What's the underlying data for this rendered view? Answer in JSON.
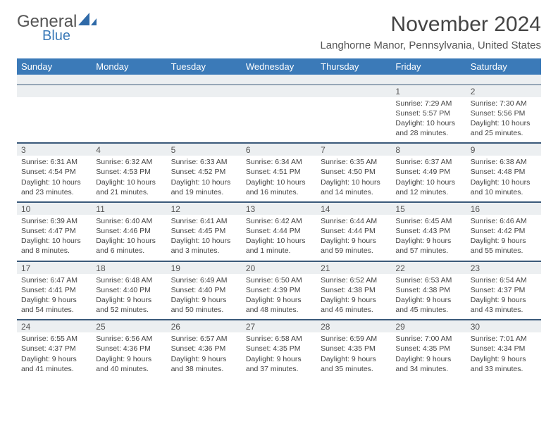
{
  "brand": {
    "top": "General",
    "bottom": "Blue"
  },
  "title": "November 2024",
  "location": "Langhorne Manor, Pennsylvania, United States",
  "colors": {
    "header_bg": "#3b7ab8",
    "header_text": "#ffffff",
    "stripe_bg": "#eceff1",
    "divider": "#3b5a7a",
    "text": "#444444",
    "location_text": "#555555"
  },
  "day_names": [
    "Sunday",
    "Monday",
    "Tuesday",
    "Wednesday",
    "Thursday",
    "Friday",
    "Saturday"
  ],
  "weeks": [
    [
      {
        "n": "",
        "sunrise": "",
        "sunset": "",
        "daylight1": "",
        "daylight2": ""
      },
      {
        "n": "",
        "sunrise": "",
        "sunset": "",
        "daylight1": "",
        "daylight2": ""
      },
      {
        "n": "",
        "sunrise": "",
        "sunset": "",
        "daylight1": "",
        "daylight2": ""
      },
      {
        "n": "",
        "sunrise": "",
        "sunset": "",
        "daylight1": "",
        "daylight2": ""
      },
      {
        "n": "",
        "sunrise": "",
        "sunset": "",
        "daylight1": "",
        "daylight2": ""
      },
      {
        "n": "1",
        "sunrise": "Sunrise: 7:29 AM",
        "sunset": "Sunset: 5:57 PM",
        "daylight1": "Daylight: 10 hours",
        "daylight2": "and 28 minutes."
      },
      {
        "n": "2",
        "sunrise": "Sunrise: 7:30 AM",
        "sunset": "Sunset: 5:56 PM",
        "daylight1": "Daylight: 10 hours",
        "daylight2": "and 25 minutes."
      }
    ],
    [
      {
        "n": "3",
        "sunrise": "Sunrise: 6:31 AM",
        "sunset": "Sunset: 4:54 PM",
        "daylight1": "Daylight: 10 hours",
        "daylight2": "and 23 minutes."
      },
      {
        "n": "4",
        "sunrise": "Sunrise: 6:32 AM",
        "sunset": "Sunset: 4:53 PM",
        "daylight1": "Daylight: 10 hours",
        "daylight2": "and 21 minutes."
      },
      {
        "n": "5",
        "sunrise": "Sunrise: 6:33 AM",
        "sunset": "Sunset: 4:52 PM",
        "daylight1": "Daylight: 10 hours",
        "daylight2": "and 19 minutes."
      },
      {
        "n": "6",
        "sunrise": "Sunrise: 6:34 AM",
        "sunset": "Sunset: 4:51 PM",
        "daylight1": "Daylight: 10 hours",
        "daylight2": "and 16 minutes."
      },
      {
        "n": "7",
        "sunrise": "Sunrise: 6:35 AM",
        "sunset": "Sunset: 4:50 PM",
        "daylight1": "Daylight: 10 hours",
        "daylight2": "and 14 minutes."
      },
      {
        "n": "8",
        "sunrise": "Sunrise: 6:37 AM",
        "sunset": "Sunset: 4:49 PM",
        "daylight1": "Daylight: 10 hours",
        "daylight2": "and 12 minutes."
      },
      {
        "n": "9",
        "sunrise": "Sunrise: 6:38 AM",
        "sunset": "Sunset: 4:48 PM",
        "daylight1": "Daylight: 10 hours",
        "daylight2": "and 10 minutes."
      }
    ],
    [
      {
        "n": "10",
        "sunrise": "Sunrise: 6:39 AM",
        "sunset": "Sunset: 4:47 PM",
        "daylight1": "Daylight: 10 hours",
        "daylight2": "and 8 minutes."
      },
      {
        "n": "11",
        "sunrise": "Sunrise: 6:40 AM",
        "sunset": "Sunset: 4:46 PM",
        "daylight1": "Daylight: 10 hours",
        "daylight2": "and 6 minutes."
      },
      {
        "n": "12",
        "sunrise": "Sunrise: 6:41 AM",
        "sunset": "Sunset: 4:45 PM",
        "daylight1": "Daylight: 10 hours",
        "daylight2": "and 3 minutes."
      },
      {
        "n": "13",
        "sunrise": "Sunrise: 6:42 AM",
        "sunset": "Sunset: 4:44 PM",
        "daylight1": "Daylight: 10 hours",
        "daylight2": "and 1 minute."
      },
      {
        "n": "14",
        "sunrise": "Sunrise: 6:44 AM",
        "sunset": "Sunset: 4:44 PM",
        "daylight1": "Daylight: 9 hours",
        "daylight2": "and 59 minutes."
      },
      {
        "n": "15",
        "sunrise": "Sunrise: 6:45 AM",
        "sunset": "Sunset: 4:43 PM",
        "daylight1": "Daylight: 9 hours",
        "daylight2": "and 57 minutes."
      },
      {
        "n": "16",
        "sunrise": "Sunrise: 6:46 AM",
        "sunset": "Sunset: 4:42 PM",
        "daylight1": "Daylight: 9 hours",
        "daylight2": "and 55 minutes."
      }
    ],
    [
      {
        "n": "17",
        "sunrise": "Sunrise: 6:47 AM",
        "sunset": "Sunset: 4:41 PM",
        "daylight1": "Daylight: 9 hours",
        "daylight2": "and 54 minutes."
      },
      {
        "n": "18",
        "sunrise": "Sunrise: 6:48 AM",
        "sunset": "Sunset: 4:40 PM",
        "daylight1": "Daylight: 9 hours",
        "daylight2": "and 52 minutes."
      },
      {
        "n": "19",
        "sunrise": "Sunrise: 6:49 AM",
        "sunset": "Sunset: 4:40 PM",
        "daylight1": "Daylight: 9 hours",
        "daylight2": "and 50 minutes."
      },
      {
        "n": "20",
        "sunrise": "Sunrise: 6:50 AM",
        "sunset": "Sunset: 4:39 PM",
        "daylight1": "Daylight: 9 hours",
        "daylight2": "and 48 minutes."
      },
      {
        "n": "21",
        "sunrise": "Sunrise: 6:52 AM",
        "sunset": "Sunset: 4:38 PM",
        "daylight1": "Daylight: 9 hours",
        "daylight2": "and 46 minutes."
      },
      {
        "n": "22",
        "sunrise": "Sunrise: 6:53 AM",
        "sunset": "Sunset: 4:38 PM",
        "daylight1": "Daylight: 9 hours",
        "daylight2": "and 45 minutes."
      },
      {
        "n": "23",
        "sunrise": "Sunrise: 6:54 AM",
        "sunset": "Sunset: 4:37 PM",
        "daylight1": "Daylight: 9 hours",
        "daylight2": "and 43 minutes."
      }
    ],
    [
      {
        "n": "24",
        "sunrise": "Sunrise: 6:55 AM",
        "sunset": "Sunset: 4:37 PM",
        "daylight1": "Daylight: 9 hours",
        "daylight2": "and 41 minutes."
      },
      {
        "n": "25",
        "sunrise": "Sunrise: 6:56 AM",
        "sunset": "Sunset: 4:36 PM",
        "daylight1": "Daylight: 9 hours",
        "daylight2": "and 40 minutes."
      },
      {
        "n": "26",
        "sunrise": "Sunrise: 6:57 AM",
        "sunset": "Sunset: 4:36 PM",
        "daylight1": "Daylight: 9 hours",
        "daylight2": "and 38 minutes."
      },
      {
        "n": "27",
        "sunrise": "Sunrise: 6:58 AM",
        "sunset": "Sunset: 4:35 PM",
        "daylight1": "Daylight: 9 hours",
        "daylight2": "and 37 minutes."
      },
      {
        "n": "28",
        "sunrise": "Sunrise: 6:59 AM",
        "sunset": "Sunset: 4:35 PM",
        "daylight1": "Daylight: 9 hours",
        "daylight2": "and 35 minutes."
      },
      {
        "n": "29",
        "sunrise": "Sunrise: 7:00 AM",
        "sunset": "Sunset: 4:35 PM",
        "daylight1": "Daylight: 9 hours",
        "daylight2": "and 34 minutes."
      },
      {
        "n": "30",
        "sunrise": "Sunrise: 7:01 AM",
        "sunset": "Sunset: 4:34 PM",
        "daylight1": "Daylight: 9 hours",
        "daylight2": "and 33 minutes."
      }
    ]
  ]
}
